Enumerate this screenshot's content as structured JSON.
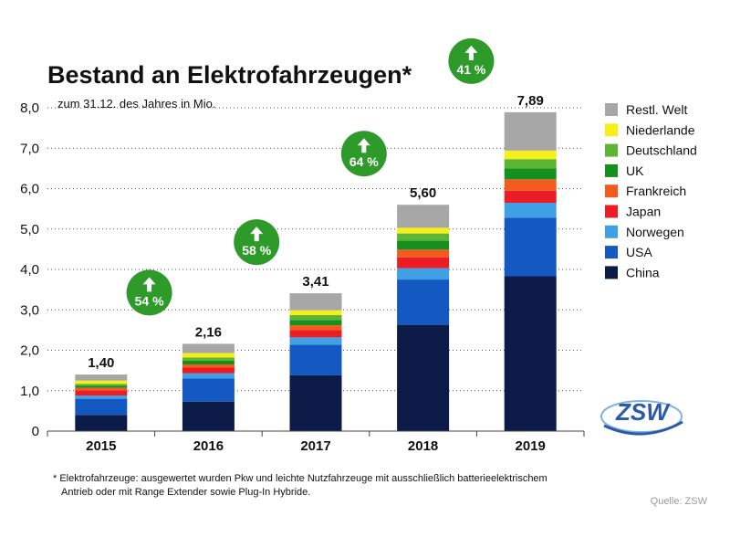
{
  "chart_data": {
    "type": "bar",
    "stacked": true,
    "title": "Bestand an Elektrofahrzeugen*",
    "subtitle": "zum 31.12. des Jahres in Mio.",
    "categories": [
      "2015",
      "2016",
      "2017",
      "2018",
      "2019"
    ],
    "ylim": [
      0,
      8
    ],
    "yticks": [
      "0",
      "1,0",
      "2,0",
      "3,0",
      "4,0",
      "5,0",
      "6,0",
      "7,0",
      "8,0"
    ],
    "grid": "horizontal dotted",
    "legend_position": "right",
    "series": [
      {
        "name": "China",
        "color": "#0b1a46",
        "values": [
          0.4,
          0.73,
          1.38,
          2.63,
          3.83
        ]
      },
      {
        "name": "USA",
        "color": "#1458c2",
        "values": [
          0.4,
          0.57,
          0.76,
          1.12,
          1.45
        ]
      },
      {
        "name": "Norwegen",
        "color": "#3fa0e6",
        "values": [
          0.08,
          0.13,
          0.18,
          0.28,
          0.37
        ]
      },
      {
        "name": "Japan",
        "color": "#ec1c24",
        "values": [
          0.13,
          0.14,
          0.18,
          0.27,
          0.3
        ]
      },
      {
        "name": "Frankreich",
        "color": "#f25a1e",
        "values": [
          0.06,
          0.08,
          0.12,
          0.19,
          0.28
        ]
      },
      {
        "name": "UK",
        "color": "#15901e",
        "values": [
          0.05,
          0.09,
          0.13,
          0.22,
          0.27
        ]
      },
      {
        "name": "Deutschland",
        "color": "#5cb534",
        "values": [
          0.05,
          0.08,
          0.12,
          0.18,
          0.23
        ]
      },
      {
        "name": "Niederlande",
        "color": "#f7ef1a",
        "values": [
          0.08,
          0.11,
          0.12,
          0.14,
          0.21
        ]
      },
      {
        "name": "Restl. Welt",
        "color": "#a7a7a7",
        "values": [
          0.15,
          0.23,
          0.42,
          0.57,
          0.95
        ]
      }
    ],
    "totals": [
      "1,40",
      "2,16",
      "3,41",
      "5,60",
      "7,89"
    ],
    "growth_badges": [
      "54 %",
      "58 %",
      "64 %",
      "41 %"
    ],
    "badge_color": "#2e9a2a"
  },
  "footnote": {
    "line1": "* Elektrofahrzeuge: ausgewertet wurden Pkw und leichte Nutzfahrzeuge mit ausschließlich batterieelektrischem",
    "line2": "Antrieb oder mit Range Extender sowie Plug-In Hybride."
  },
  "source": "Quelle: ZSW",
  "logo": {
    "text": "ZSW"
  }
}
